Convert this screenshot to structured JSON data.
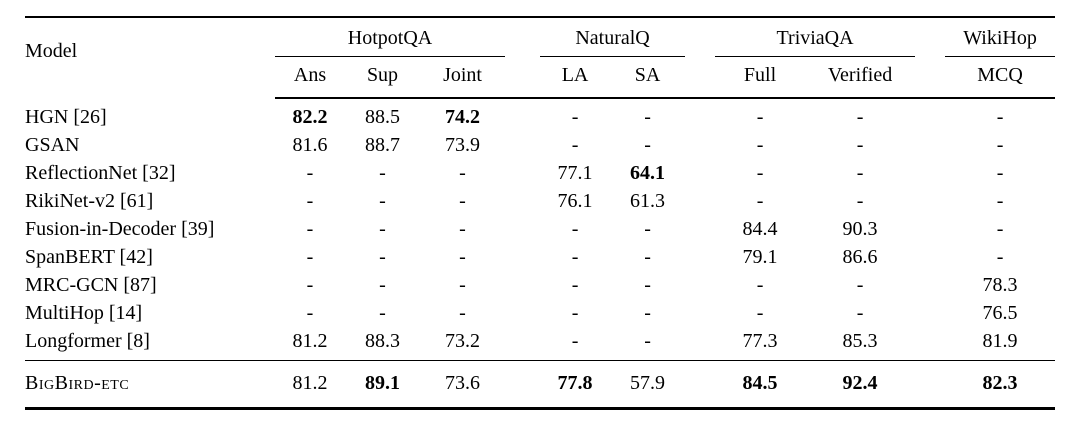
{
  "page": {
    "background_color": "#ffffff",
    "text_color": "#000000"
  },
  "table": {
    "model_header": "Model",
    "groups": [
      {
        "label": "HotpotQA",
        "cols": [
          "Ans",
          "Sup",
          "Joint"
        ]
      },
      {
        "label": "NaturalQ",
        "cols": [
          "LA",
          "SA"
        ]
      },
      {
        "label": "TriviaQA",
        "cols": [
          "Full",
          "Verified"
        ]
      },
      {
        "label": "WikiHop",
        "cols": [
          "MCQ"
        ]
      }
    ],
    "rows": [
      {
        "model": "HGN [26]",
        "values": [
          "82.2",
          "88.5",
          "74.2",
          "-",
          "-",
          "-",
          "-",
          "-"
        ],
        "bold": [
          0,
          2
        ]
      },
      {
        "model": "GSAN",
        "values": [
          "81.6",
          "88.7",
          "73.9",
          "-",
          "-",
          "-",
          "-",
          "-"
        ],
        "bold": []
      },
      {
        "model": "ReflectionNet [32]",
        "values": [
          "-",
          "-",
          "-",
          "77.1",
          "64.1",
          "-",
          "-",
          "-"
        ],
        "bold": [
          4
        ]
      },
      {
        "model": "RikiNet-v2 [61]",
        "values": [
          "-",
          "-",
          "-",
          "76.1",
          "61.3",
          "-",
          "-",
          "-"
        ],
        "bold": []
      },
      {
        "model": "Fusion-in-Decoder [39]",
        "values": [
          "-",
          "-",
          "-",
          "-",
          "-",
          "84.4",
          "90.3",
          "-"
        ],
        "bold": []
      },
      {
        "model": "SpanBERT [42]",
        "values": [
          "-",
          "-",
          "-",
          "-",
          "-",
          "79.1",
          "86.6",
          "-"
        ],
        "bold": []
      },
      {
        "model": "MRC-GCN [87]",
        "values": [
          "-",
          "-",
          "-",
          "-",
          "-",
          "-",
          "-",
          "78.3"
        ],
        "bold": []
      },
      {
        "model": "MultiHop [14]",
        "values": [
          "-",
          "-",
          "-",
          "-",
          "-",
          "-",
          "-",
          "76.5"
        ],
        "bold": []
      },
      {
        "model": "Longformer [8]",
        "values": [
          "81.2",
          "88.3",
          "73.2",
          "-",
          "-",
          "77.3",
          "85.3",
          "81.9"
        ],
        "bold": []
      }
    ],
    "final_row": {
      "model": "BigBird-etc",
      "values": [
        "81.2",
        "89.1",
        "73.6",
        "77.8",
        "57.9",
        "84.5",
        "92.4",
        "82.3"
      ],
      "bold": [
        1,
        3,
        5,
        6,
        7
      ]
    }
  }
}
